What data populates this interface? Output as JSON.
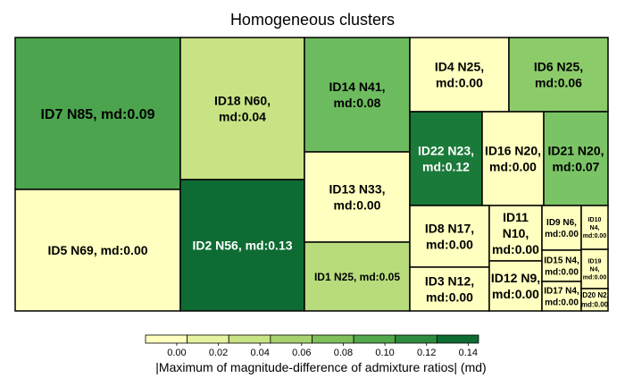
{
  "chart_data": {
    "type": "treemap",
    "title": "Homogeneous clusters",
    "colorbar": {
      "label": "|Maximum of magnitude-difference of admixture ratios| (md)",
      "ticks": [
        "0.00",
        "0.02",
        "0.04",
        "0.06",
        "0.08",
        "0.10",
        "0.12",
        "0.14"
      ],
      "colors": [
        "#ffffc0",
        "#e5f2a0",
        "#c8e384",
        "#a7d26e",
        "#7fbf5c",
        "#52a84a",
        "#2e8c3e",
        "#0e6c33"
      ]
    },
    "clusters": [
      {
        "id": "ID7",
        "n": 85,
        "md": 0.09,
        "label": "ID7 N85, md:0.09",
        "color": "#4ca54e"
      },
      {
        "id": "ID5",
        "n": 69,
        "md": 0.0,
        "label": "ID5 N69, md:0.00",
        "color": "#ffffc0"
      },
      {
        "id": "ID18",
        "n": 60,
        "md": 0.04,
        "label": "ID18 N60, md:0.04",
        "color": "#c8e384"
      },
      {
        "id": "ID2",
        "n": 56,
        "md": 0.13,
        "label": "ID2 N56, md:0.13",
        "color": "#0e6c33"
      },
      {
        "id": "ID14",
        "n": 41,
        "md": 0.08,
        "label": "ID14 N41, md:0.08",
        "color": "#6dbb5f"
      },
      {
        "id": "ID13",
        "n": 33,
        "md": 0.0,
        "label": "ID13 N33, md:0.00",
        "color": "#ffffc0"
      },
      {
        "id": "ID1",
        "n": 25,
        "md": 0.05,
        "label": "ID1 N25, md:0.05",
        "color": "#b8dc7c"
      },
      {
        "id": "ID4",
        "n": 25,
        "md": 0.0,
        "label": "ID4 N25, md:0.00",
        "color": "#ffffc0"
      },
      {
        "id": "ID6",
        "n": 25,
        "md": 0.06,
        "label": "ID6 N25, md:0.06",
        "color": "#8ccb6a"
      },
      {
        "id": "ID22",
        "n": 23,
        "md": 0.12,
        "label": "ID22 N23, md:0.12",
        "color": "#1a7a3a"
      },
      {
        "id": "ID16",
        "n": 20,
        "md": 0.0,
        "label": "ID16 N20, md:0.00",
        "color": "#ffffc0"
      },
      {
        "id": "ID21",
        "n": 20,
        "md": 0.07,
        "label": "ID21 N20, md:0.07",
        "color": "#7bc466"
      },
      {
        "id": "ID8",
        "n": 17,
        "md": 0.0,
        "label": "ID8 N17, md:0.00",
        "color": "#ffffc0"
      },
      {
        "id": "ID3",
        "n": 12,
        "md": 0.0,
        "label": "ID3 N12, md:0.00",
        "color": "#ffffc0"
      },
      {
        "id": "ID11",
        "n": 10,
        "md": 0.0,
        "label": "ID11 N10, md:0.00",
        "color": "#ffffc0"
      },
      {
        "id": "ID12",
        "n": 9,
        "md": 0.0,
        "label": "ID12 N9, md:0.00",
        "color": "#ffffc0"
      },
      {
        "id": "ID9",
        "n": 6,
        "md": 0.0,
        "label": "ID9 N6, md:0.00",
        "color": "#ffffc0"
      },
      {
        "id": "ID15",
        "n": 4,
        "md": 0.0,
        "label": "ID15 N4, md:0.00",
        "color": "#ffffc0"
      },
      {
        "id": "ID17",
        "n": 4,
        "md": 0.0,
        "label": "ID17 N4, md:0.00",
        "color": "#ffffc0"
      },
      {
        "id": "ID19",
        "n": 4,
        "md": 0.0,
        "label": "ID19 N4, md:0.00",
        "color": "#ffffc0"
      },
      {
        "id": "ID10",
        "n": 4,
        "md": 0.0,
        "label": "ID10 N4, md:0.00",
        "color": "#ffffc0"
      },
      {
        "id": "ID20",
        "n": 2,
        "md": 0.0,
        "label": "ID20 N2, md:0.00",
        "color": "#ffffc0"
      }
    ]
  }
}
